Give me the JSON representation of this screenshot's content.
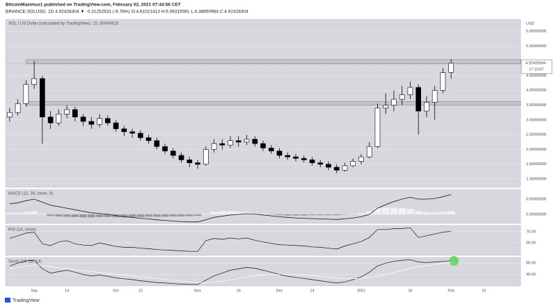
{
  "header": {
    "author_line": "BitcoinMaximus1 published on TradingView.com, February 02, 2021 07:44:56 CET",
    "symbol_line": "BINANCE:SOLUSD, 1D 4.92428304 ▼ -0.31252531 (-6.78%) O:4.61021413 H:5.06315081 L:4.38850964 C:4.92428304"
  },
  "footer": {
    "brand": "TradingView"
  },
  "chart_data": [
    {
      "type": "candlestick",
      "title": "SOL / US Dollar (calculated by TradingView), 1D, BINANCE",
      "currency": "USD",
      "last_price_label": "4.92428304",
      "countdown": "17:15:07",
      "up_color": "#ffffff",
      "down_color": "#000000",
      "categories": [
        null,
        null,
        null,
        "Sep",
        null,
        null,
        null,
        "14",
        null,
        null,
        null,
        null,
        null,
        "Oct",
        null,
        null,
        "12",
        null,
        null,
        null,
        null,
        null,
        null,
        "Nov",
        null,
        null,
        null,
        null,
        "16",
        null,
        null,
        null,
        null,
        "Dec",
        null,
        null,
        null,
        "14",
        null,
        null,
        null,
        null,
        null,
        "2021",
        null,
        null,
        null,
        null,
        null,
        "18",
        null,
        null,
        null,
        null,
        "Feb",
        null,
        null,
        null,
        "15",
        null,
        null,
        null,
        null
      ],
      "open": [
        3.1,
        3.25,
        3.55,
        4.2,
        4.4,
        3.1,
        2.9,
        3.2,
        3.35,
        3.1,
        2.95,
        2.85,
        3.05,
        2.9,
        2.7,
        2.6,
        2.55,
        2.4,
        2.3,
        2.1,
        1.95,
        1.8,
        1.65,
        1.55,
        1.5,
        2.0,
        2.2,
        2.15,
        2.3,
        2.25,
        2.35,
        2.2,
        2.05,
        1.95,
        1.8,
        1.75,
        1.7,
        1.65,
        1.55,
        1.5,
        1.4,
        1.3,
        1.45,
        1.6,
        1.75,
        2.1,
        3.4,
        3.5,
        3.7,
        3.85,
        4.1,
        3.3,
        3.6,
        4.0,
        4.61,
        null,
        null,
        null,
        null,
        null,
        null,
        null,
        null
      ],
      "high": [
        3.4,
        3.7,
        4.35,
        5.0,
        4.5,
        3.3,
        3.35,
        3.5,
        3.45,
        3.2,
        3.1,
        3.2,
        3.15,
        3.0,
        2.8,
        2.7,
        2.65,
        2.5,
        2.4,
        2.2,
        2.05,
        1.9,
        1.75,
        1.65,
        2.1,
        2.35,
        2.35,
        2.45,
        2.45,
        2.5,
        2.45,
        2.3,
        2.15,
        2.05,
        1.9,
        1.85,
        1.8,
        1.75,
        1.65,
        1.6,
        1.5,
        1.55,
        1.7,
        1.85,
        2.25,
        3.55,
        3.9,
        4.0,
        4.15,
        4.3,
        4.2,
        3.8,
        4.15,
        4.75,
        5.06,
        null,
        null,
        null,
        null,
        null,
        null,
        null,
        null
      ],
      "low": [
        2.95,
        3.15,
        3.45,
        4.05,
        2.2,
        2.7,
        2.8,
        3.05,
        2.95,
        2.8,
        2.7,
        2.75,
        2.8,
        2.6,
        2.45,
        2.4,
        2.3,
        2.2,
        2.0,
        1.85,
        1.7,
        1.55,
        1.4,
        1.35,
        1.45,
        1.9,
        2.0,
        2.05,
        2.1,
        2.15,
        2.1,
        1.95,
        1.85,
        1.7,
        1.65,
        1.6,
        1.55,
        1.45,
        1.4,
        1.3,
        1.2,
        1.25,
        1.4,
        1.5,
        1.7,
        2.05,
        3.2,
        3.3,
        3.5,
        3.7,
        2.5,
        3.1,
        3.0,
        3.9,
        4.39,
        null,
        null,
        null,
        null,
        null,
        null,
        null,
        null
      ],
      "close": [
        3.25,
        3.55,
        4.2,
        4.4,
        3.1,
        2.9,
        3.2,
        3.35,
        3.1,
        2.95,
        2.85,
        3.05,
        2.9,
        2.7,
        2.6,
        2.55,
        2.4,
        2.3,
        2.1,
        1.95,
        1.8,
        1.65,
        1.55,
        1.5,
        2.0,
        2.2,
        2.15,
        2.3,
        2.25,
        2.35,
        2.2,
        2.05,
        1.95,
        1.8,
        1.75,
        1.7,
        1.65,
        1.55,
        1.5,
        1.4,
        1.3,
        1.45,
        1.6,
        1.75,
        2.1,
        3.4,
        3.5,
        3.7,
        3.85,
        4.1,
        3.3,
        3.6,
        4.0,
        4.6,
        4.92,
        null,
        null,
        null,
        null,
        null,
        null,
        null,
        null
      ],
      "zones": [
        [
          4.9,
          5.04
        ],
        [
          3.5,
          3.62
        ]
      ],
      "ylim": [
        0.72,
        6.4
      ],
      "yticks": [
        {
          "value": 1,
          "label": "1.00000000"
        },
        {
          "value": 1.5,
          "label": "1.50000000"
        },
        {
          "value": 2,
          "label": "2.00000000"
        },
        {
          "value": 2.5,
          "label": "2.50000000"
        },
        {
          "value": 3,
          "label": "3.00000000"
        },
        {
          "value": 3.5,
          "label": "3.50000000"
        },
        {
          "value": 4,
          "label": "4.00000000"
        },
        {
          "value": 4.5,
          "label": "4.50000000"
        },
        {
          "value": 5.5,
          "label": "5.50000000"
        },
        {
          "value": 6,
          "label": "6.00000000"
        }
      ]
    },
    {
      "type": "macd",
      "title": "MACD (12, 26, close, 9)",
      "series": [
        {
          "color": "#999999",
          "values": [
            0.05,
            0.05,
            0.08,
            0.1,
            0.02,
            -0.05,
            -0.07,
            -0.08,
            -0.09,
            -0.1,
            -0.1,
            -0.09,
            -0.09,
            -0.1,
            -0.1,
            -0.09,
            -0.09,
            -0.08,
            -0.08,
            -0.08,
            -0.07,
            -0.07,
            -0.06,
            -0.05,
            0.02,
            0.08,
            0.1,
            0.1,
            0.09,
            0.08,
            0.05,
            0.02,
            -0.01,
            -0.03,
            -0.04,
            -0.04,
            -0.04,
            -0.03,
            -0.03,
            -0.03,
            -0.03,
            -0.01,
            0.01,
            0.04,
            0.1,
            0.2,
            0.22,
            0.22,
            0.2,
            0.18,
            0.1,
            0.07,
            0.06,
            0.08,
            0.1,
            null,
            null,
            null,
            null,
            null,
            null,
            null,
            null
          ]
        },
        {
          "color": "#111111",
          "values": [
            0.35,
            0.38,
            0.45,
            0.5,
            0.4,
            0.3,
            0.25,
            0.2,
            0.15,
            0.1,
            0.05,
            0.03,
            0.0,
            -0.04,
            -0.08,
            -0.1,
            -0.13,
            -0.15,
            -0.18,
            -0.2,
            -0.22,
            -0.24,
            -0.25,
            -0.25,
            -0.18,
            -0.1,
            -0.06,
            -0.02,
            0.0,
            0.02,
            0.01,
            -0.02,
            -0.05,
            -0.08,
            -0.1,
            -0.12,
            -0.13,
            -0.14,
            -0.15,
            -0.16,
            -0.17,
            -0.15,
            -0.12,
            -0.08,
            0.0,
            0.2,
            0.32,
            0.42,
            0.5,
            0.56,
            0.5,
            0.5,
            0.52,
            0.58,
            0.65,
            null,
            null,
            null,
            null,
            null,
            null,
            null,
            null
          ]
        }
      ],
      "ylim": [
        -0.3,
        0.82
      ],
      "yticks": [
        {
          "value": 0,
          "label": "0.00000000"
        },
        {
          "value": 0.5,
          "label": "0.50000000"
        }
      ]
    },
    {
      "type": "line",
      "title": "RSI (14, close)",
      "series": [
        {
          "color": "#111111",
          "values": [
            60,
            66,
            72,
            74,
            48,
            44,
            52,
            55,
            48,
            45,
            44,
            50,
            46,
            42,
            40,
            40,
            38,
            37,
            35,
            34,
            33,
            32,
            31,
            31,
            55,
            60,
            58,
            61,
            59,
            61,
            56,
            52,
            49,
            46,
            45,
            44,
            43,
            41,
            40,
            38,
            36,
            43,
            48,
            53,
            62,
            80,
            80,
            82,
            82,
            84,
            62,
            66,
            70,
            74,
            76,
            null,
            null,
            null,
            null,
            null,
            null,
            null,
            null
          ]
        }
      ],
      "ylim": [
        22,
        89
      ],
      "yticks": [
        {
          "value": 50,
          "label": "50.00"
        },
        {
          "value": 75,
          "label": "75.00"
        }
      ]
    },
    {
      "type": "line",
      "title": "Stoch (14, 28, 14)",
      "series": [
        {
          "color": "#111111",
          "values": [
            70,
            80,
            88,
            90,
            60,
            45,
            50,
            55,
            48,
            40,
            35,
            38,
            34,
            28,
            25,
            22,
            18,
            15,
            12,
            10,
            8,
            6,
            5,
            5,
            20,
            35,
            45,
            55,
            60,
            65,
            62,
            55,
            48,
            40,
            34,
            30,
            26,
            22,
            18,
            14,
            10,
            14,
            22,
            32,
            48,
            70,
            80,
            86,
            90,
            92,
            84,
            82,
            84,
            86,
            88,
            null,
            null,
            null,
            null,
            null,
            null,
            null,
            null
          ]
        },
        {
          "color": "#ffffff",
          "values": [
            60,
            65,
            70,
            74,
            72,
            68,
            64,
            60,
            57,
            54,
            50,
            47,
            44,
            41,
            38,
            35,
            32,
            29,
            26,
            23,
            20,
            17,
            14,
            12,
            12,
            14,
            17,
            21,
            26,
            31,
            35,
            38,
            40,
            41,
            41,
            40,
            38,
            36,
            34,
            31,
            28,
            26,
            25,
            26,
            29,
            34,
            40,
            47,
            54,
            61,
            67,
            71,
            75,
            79,
            82,
            null,
            null,
            null,
            null,
            null,
            null,
            null,
            null
          ]
        }
      ],
      "ylim": [
        0,
        100
      ],
      "yticks": [
        {
          "value": 40,
          "label": "40.00"
        },
        {
          "value": 80,
          "label": "80.00"
        }
      ]
    }
  ]
}
